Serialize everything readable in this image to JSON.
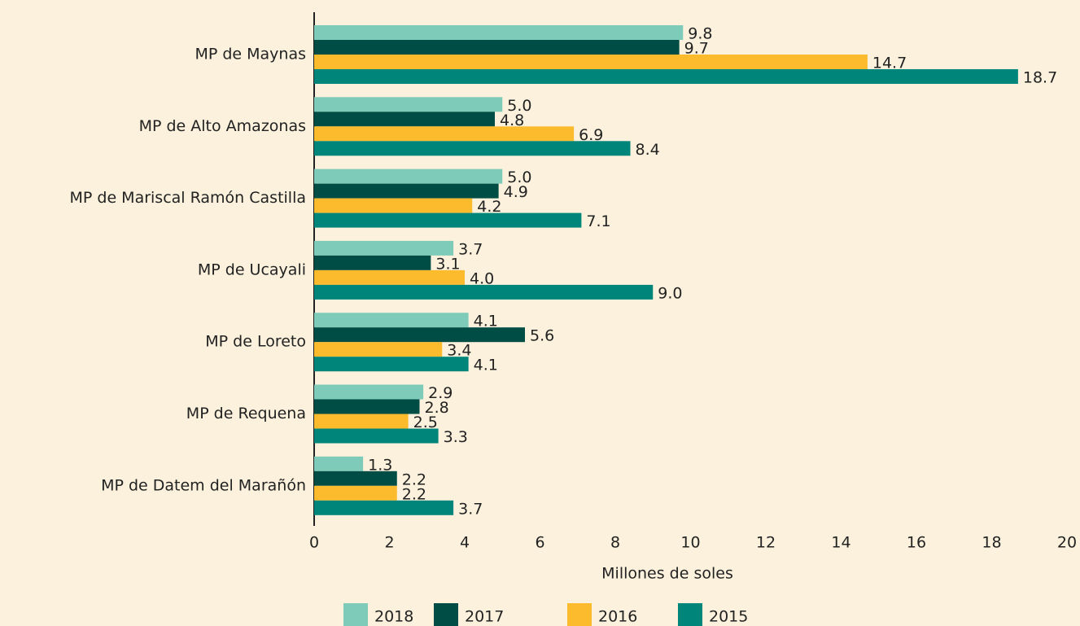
{
  "chart_data": {
    "type": "bar",
    "orientation": "horizontal",
    "categories": [
      "MP de Maynas",
      "MP de Alto Amazonas",
      "MP de Mariscal Ramón Castilla",
      "MP de Ucayali",
      "MP de Loreto",
      "MP de Requena",
      "MP de Datem del Marañón"
    ],
    "series": [
      {
        "name": "2018",
        "color": "#7fcbb9",
        "values": [
          9.8,
          5.0,
          5.0,
          3.7,
          4.1,
          2.9,
          1.3
        ],
        "value_labels": [
          "9.8",
          "5.0",
          "5.0",
          "3.7",
          "4.1",
          "2.9",
          "1.3"
        ]
      },
      {
        "name": "2017",
        "color": "#004d45",
        "values": [
          9.7,
          4.8,
          4.9,
          3.1,
          5.6,
          2.8,
          2.2
        ],
        "value_labels": [
          "9.7",
          "4.8",
          "4.9",
          "3.1",
          "5.6",
          "2.8",
          "2.2"
        ]
      },
      {
        "name": "2016",
        "color": "#fbbb2c",
        "values": [
          14.7,
          6.9,
          4.2,
          4.0,
          3.4,
          2.5,
          2.2
        ],
        "value_labels": [
          "14.7",
          "6.9",
          "4.2",
          "4.0",
          "3.4",
          "2.5",
          "2.2"
        ]
      },
      {
        "name": "2015",
        "color": "#00857a",
        "values": [
          18.7,
          8.4,
          7.1,
          9.0,
          4.1,
          3.3,
          3.7
        ],
        "value_labels": [
          "18.7",
          "8.4",
          "7.1",
          "9.0",
          "4.1",
          "3.3",
          "3.7"
        ]
      }
    ],
    "xlabel": "Millones de soles",
    "xlim": [
      0,
      20
    ],
    "xticks": [
      0,
      2,
      4,
      6,
      8,
      10,
      12,
      14,
      16,
      18,
      20
    ],
    "grid": false,
    "legend": "bottom"
  }
}
